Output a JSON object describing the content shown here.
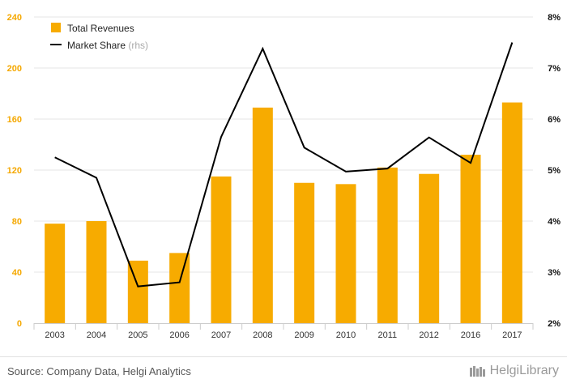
{
  "chart_data": {
    "type": "bar",
    "categories": [
      "2003",
      "2004",
      "2005",
      "2006",
      "2007",
      "2008",
      "2009",
      "2010",
      "2011",
      "2012",
      "2016",
      "2017"
    ],
    "series": [
      {
        "name": "Total Revenues",
        "kind": "bar",
        "axis": "left",
        "values": [
          78,
          80,
          49,
          55,
          115,
          169,
          110,
          109,
          122,
          117,
          132,
          173
        ]
      },
      {
        "name": "Market Share",
        "suffix": "(rhs)",
        "kind": "line",
        "axis": "right",
        "values": [
          5.25,
          4.85,
          2.72,
          2.8,
          5.65,
          7.38,
          5.44,
          4.97,
          5.03,
          5.64,
          5.14,
          7.5
        ]
      }
    ],
    "y_left": {
      "lim": [
        0,
        240
      ],
      "ticks": [
        "0",
        "40",
        "80",
        "120",
        "160",
        "200",
        "240"
      ]
    },
    "y_right": {
      "lim": [
        2,
        8
      ],
      "ticks": [
        "2%",
        "3%",
        "4%",
        "5%",
        "6%",
        "7%",
        "8%"
      ]
    },
    "grid": true,
    "legend_position": "top-left",
    "colors": {
      "bar": "#f7ab00",
      "line": "#000000",
      "left_axis": "#f5a800",
      "right_axis": "#111111",
      "grid": "#e6e6e6"
    }
  },
  "footer": {
    "source": "Source: Company Data, Helgi Analytics",
    "logo": "HelgiLibrary"
  }
}
